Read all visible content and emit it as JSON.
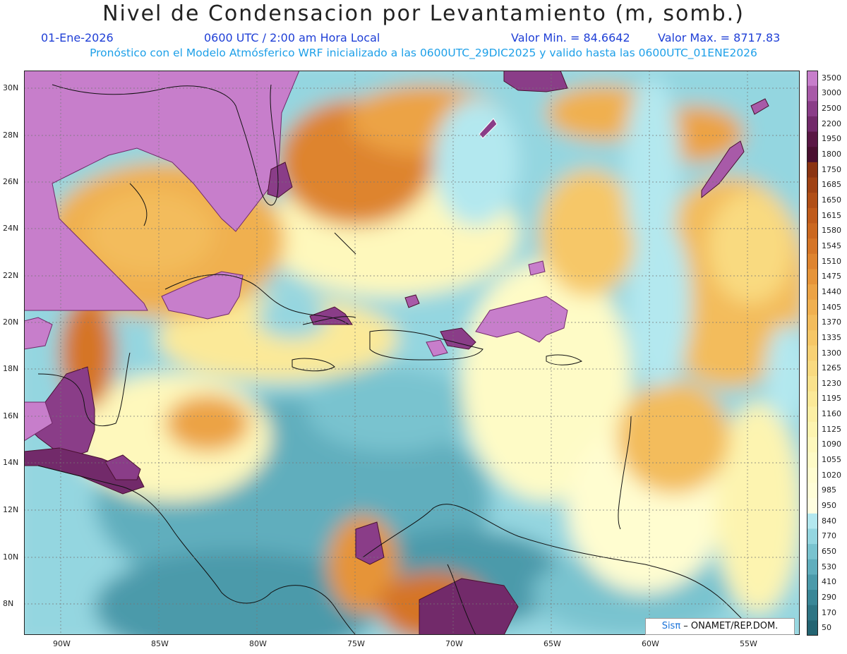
{
  "header": {
    "title": "Nivel de Condensacion por Levantamiento (m, somb.)",
    "date": "01-Ene-2026",
    "time": "0600 UTC / 2:00 am Hora Local",
    "vmin_label": "Valor Min. = 84.6642",
    "vmax_label": "Valor Max. = 8717.83",
    "forecast": "Pronóstico con el Modelo Atmósferico WRF inicializado a las 0600UTC_29DIC2025 y valido hasta las  0600UTC_01ENE2026"
  },
  "axes": {
    "lat_labels": [
      "30N",
      "28N",
      "26N",
      "24N",
      "22N",
      "20N",
      "18N",
      "16N",
      "14N",
      "12N",
      "10N",
      "8N"
    ],
    "lon_labels": [
      "90W",
      "85W",
      "80W",
      "75W",
      "70W",
      "65W",
      "60W",
      "55W"
    ]
  },
  "legend": {
    "levels": [
      "3500",
      "3000",
      "2500",
      "2200",
      "1950",
      "1800",
      "1750",
      "1685",
      "1650",
      "1615",
      "1580",
      "1545",
      "1510",
      "1475",
      "1440",
      "1405",
      "1370",
      "1335",
      "1300",
      "1265",
      "1230",
      "1195",
      "1160",
      "1125",
      "1090",
      "1055",
      "1020",
      "985",
      "950",
      "840",
      "770",
      "650",
      "530",
      "410",
      "290",
      "170",
      "50"
    ],
    "colors": [
      "#c77ecb",
      "#a85aa8",
      "#8a3d88",
      "#722a6a",
      "#5a1845",
      "#4a1030",
      "#8b3412",
      "#a04214",
      "#b14f17",
      "#c05b1b",
      "#cb6820",
      "#d57527",
      "#de842f",
      "#e69439",
      "#eca345",
      "#f0b050",
      "#f3bc5c",
      "#f6c767",
      "#f8d174",
      "#f9da80",
      "#fae28c",
      "#fbe998",
      "#fcefa4",
      "#fdf4b0",
      "#fef8bc",
      "#fefbc6",
      "#fffdd0",
      "#fffed8",
      "#fffee0",
      "#b3e8ef",
      "#94d6e0",
      "#79c3cf",
      "#60aebd",
      "#4b9aaa",
      "#3a8797",
      "#2e7584",
      "#236472"
    ]
  },
  "credit": {
    "sis": "Sisπ",
    "rest": " – ONAMET/REP.DOM."
  }
}
